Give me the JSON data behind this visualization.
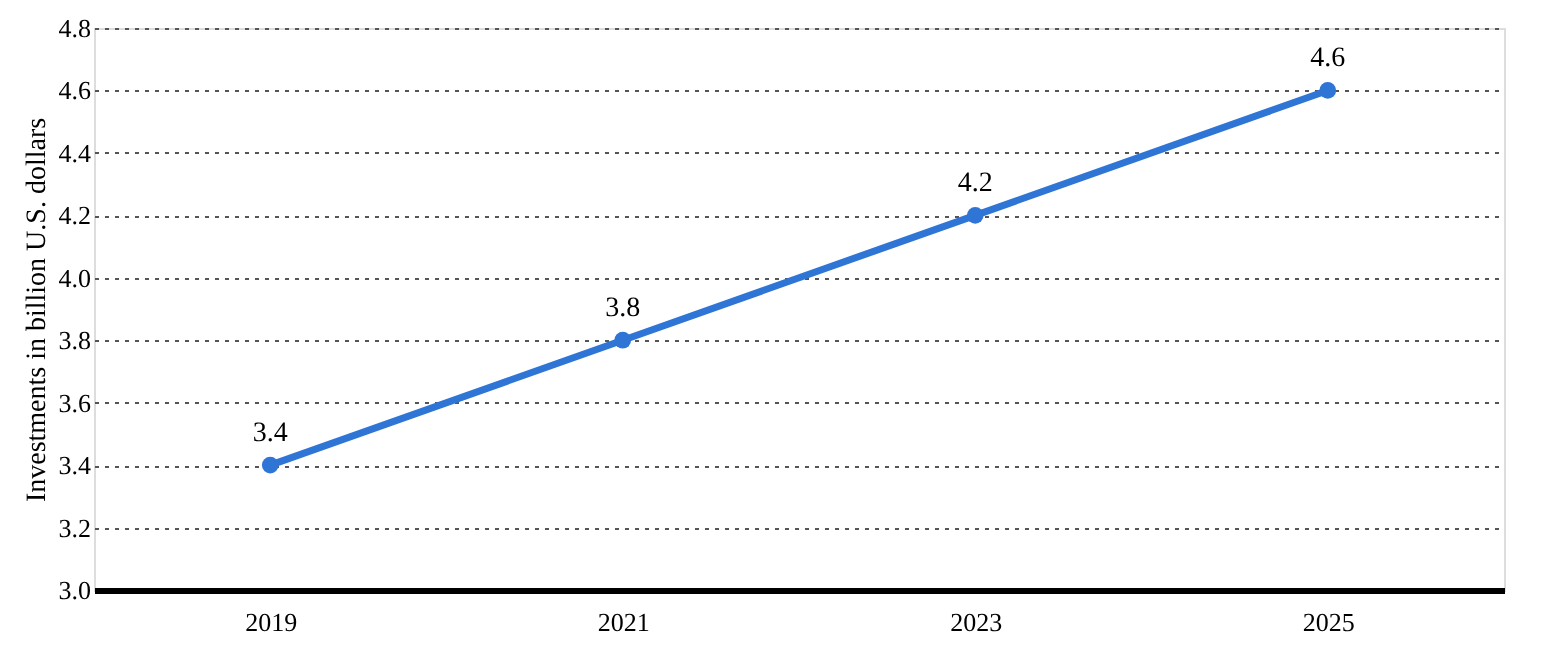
{
  "chart_data": {
    "type": "line",
    "ylabel": "Investments in billion U.S. dollars",
    "categories": [
      "2019",
      "2021",
      "2023",
      "2025"
    ],
    "series": [
      {
        "color": "#2e75d6",
        "values": [
          3.4,
          3.8,
          4.2,
          4.6
        ]
      }
    ],
    "ylim": [
      3.0,
      4.8
    ],
    "yticks": [
      {
        "value": 3.0,
        "label": "3.0"
      },
      3.2,
      3.4,
      3.6,
      3.8,
      {
        "value": 4.0,
        "label": "4.0"
      },
      4.2,
      4.4,
      4.6,
      4.8
    ],
    "grid": "y",
    "marker": "circle",
    "line_style": "solid",
    "data_labels": true
  }
}
